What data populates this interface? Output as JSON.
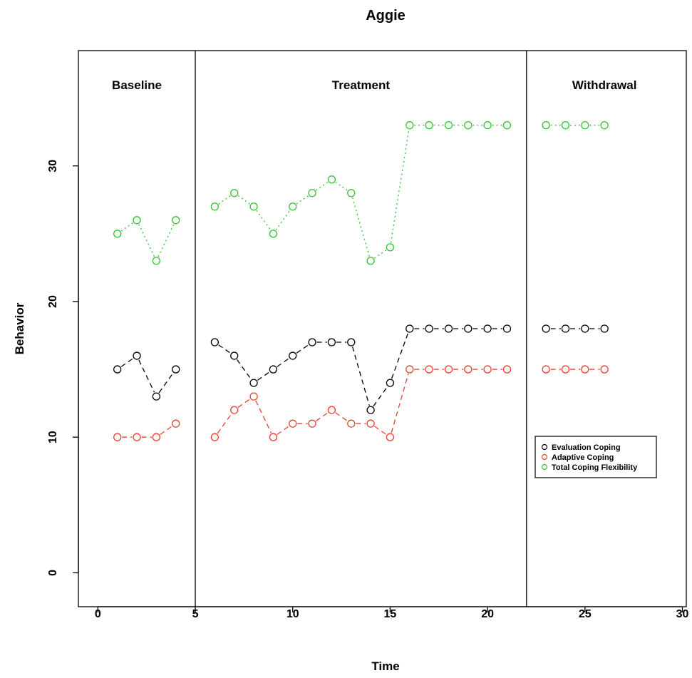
{
  "chart_data": {
    "type": "line",
    "title": "Aggie",
    "xlabel": "Time",
    "ylabel": "Behavior",
    "xlim": [
      -1,
      30.2
    ],
    "ylim": [
      -2.5,
      38.5
    ],
    "x_ticks": [
      "0",
      "5",
      "10",
      "15",
      "20",
      "25",
      "30"
    ],
    "y_ticks": [
      "0",
      "10",
      "20",
      "30"
    ],
    "x_tick_values": [
      0,
      5,
      10,
      15,
      20,
      25,
      30
    ],
    "y_tick_values": [
      0,
      10,
      20,
      30
    ],
    "grid": false,
    "legend_position": "right",
    "phase_lines": [
      5,
      22
    ],
    "phases": [
      {
        "label": "Baseline",
        "x": 2
      },
      {
        "label": "Treatment",
        "x": 13.5
      },
      {
        "label": "Withdrawal",
        "x": 26
      }
    ],
    "series": [
      {
        "name": "Evaluation Coping",
        "color": "#000000",
        "line_style": "dashed-solid",
        "segments": [
          {
            "x": [
              1,
              2,
              3,
              4
            ],
            "y": [
              15,
              16,
              13,
              15
            ]
          },
          {
            "x": [
              6,
              7,
              8,
              9,
              10,
              11,
              12,
              13,
              14,
              15,
              16,
              17,
              18,
              19,
              20,
              21
            ],
            "y": [
              17,
              16,
              14,
              15,
              16,
              17,
              17,
              17,
              12,
              14,
              18,
              18,
              18,
              18,
              18,
              18
            ]
          },
          {
            "x": [
              23,
              24,
              25,
              26
            ],
            "y": [
              18,
              18,
              18,
              18
            ]
          }
        ]
      },
      {
        "name": "Adaptive Coping",
        "color": "#e8402f",
        "line_style": "dashed",
        "segments": [
          {
            "x": [
              1,
              2,
              3,
              4
            ],
            "y": [
              10,
              10,
              10,
              11
            ]
          },
          {
            "x": [
              6,
              7,
              8,
              9,
              10,
              11,
              12,
              13,
              14,
              15,
              16,
              17,
              18,
              19,
              20,
              21
            ],
            "y": [
              10,
              12,
              13,
              10,
              11,
              11,
              12,
              11,
              11,
              10,
              15,
              15,
              15,
              15,
              15,
              15
            ]
          },
          {
            "x": [
              23,
              24,
              25,
              26
            ],
            "y": [
              15,
              15,
              15,
              15
            ]
          }
        ]
      },
      {
        "name": "Total Coping Flexibility",
        "color": "#2fc42f",
        "line_style": "dotted",
        "segments": [
          {
            "x": [
              1,
              2,
              3,
              4
            ],
            "y": [
              25,
              26,
              23,
              26
            ]
          },
          {
            "x": [
              6,
              7,
              8,
              9,
              10,
              11,
              12,
              13,
              14,
              15,
              16,
              17,
              18,
              19,
              20,
              21
            ],
            "y": [
              27,
              28,
              27,
              25,
              27,
              28,
              29,
              28,
              23,
              24,
              33,
              33,
              33,
              33,
              33,
              33
            ]
          },
          {
            "x": [
              23,
              24,
              25,
              26
            ],
            "y": [
              33,
              33,
              33,
              33
            ]
          }
        ]
      }
    ]
  }
}
